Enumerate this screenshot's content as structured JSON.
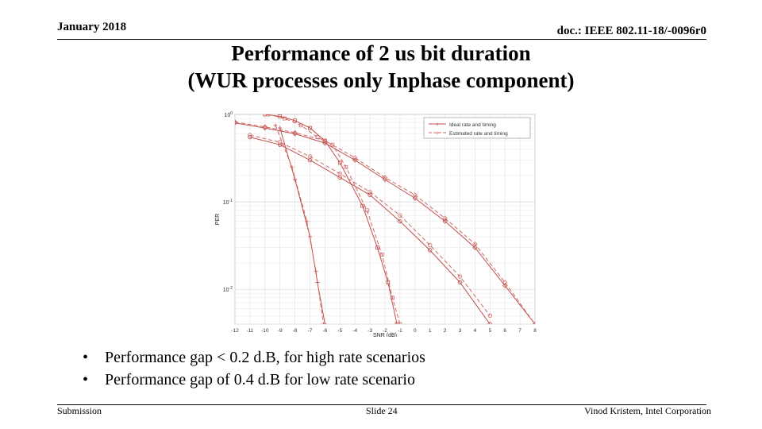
{
  "header": {
    "date": "January 2018",
    "doc": "doc.: IEEE 802.11-18/-0096r0"
  },
  "title": {
    "line1": "Performance of 2 us bit duration",
    "line2": "(WUR processes only Inphase component)"
  },
  "chart_data": {
    "type": "line",
    "title": "",
    "xlabel": "SNR (dB)",
    "ylabel": "PER",
    "xlim": [
      -12,
      8
    ],
    "ylim": [
      0.004,
      1
    ],
    "yscale": "log",
    "grid": true,
    "legend_position": "top-right",
    "x_ticks": [
      "-12",
      "-11",
      "-10",
      "-9",
      "-8",
      "-7",
      "-6",
      "-5",
      "-4",
      "-3",
      "-2",
      "-1",
      "0",
      "1",
      "2",
      "3",
      "4",
      "5",
      "6",
      "7",
      "8"
    ],
    "y_ticks": [
      {
        "base": "10",
        "exp": "0",
        "value": 1
      },
      {
        "base": "10",
        "exp": "-1",
        "value": 0.1
      },
      {
        "base": "10",
        "exp": "-2",
        "value": 0.01
      }
    ],
    "colors": {
      "ideal": "#c0504d",
      "estimated": "#d06a66"
    },
    "legend": [
      "Ideal rate and timing",
      "Estimated rate and timing"
    ],
    "series": [
      {
        "name": "Ideal rate and timing",
        "group": "plus",
        "dash": false,
        "marker": "plus",
        "x": [
          -9,
          -8,
          -7,
          -6.5,
          -6
        ],
        "y": [
          0.7,
          0.18,
          0.04,
          0.012,
          0.004
        ]
      },
      {
        "name": "Estimated rate and timing",
        "group": "plus",
        "dash": true,
        "marker": "plus",
        "x": [
          -9.3,
          -8.2,
          -7.2,
          -6.6,
          -6.1
        ],
        "y": [
          0.75,
          0.25,
          0.06,
          0.016,
          0.004
        ]
      },
      {
        "name": "Ideal rate and timing",
        "group": "square",
        "dash": false,
        "marker": "square",
        "x": [
          -10,
          -9,
          -8,
          -7,
          -6,
          -5,
          -3.5,
          -2.5,
          -1.8,
          -1.2
        ],
        "y": [
          1,
          0.95,
          0.85,
          0.7,
          0.5,
          0.28,
          0.09,
          0.03,
          0.012,
          0.004
        ]
      },
      {
        "name": "Estimated rate and timing",
        "group": "square",
        "dash": true,
        "marker": "square",
        "x": [
          -9.8,
          -8.7,
          -7.6,
          -6.5,
          -5.5,
          -4.6,
          -3.2,
          -2.2,
          -1.5,
          -1.0
        ],
        "y": [
          1,
          0.9,
          0.75,
          0.55,
          0.45,
          0.25,
          0.08,
          0.025,
          0.008,
          0.004
        ]
      },
      {
        "name": "Ideal rate and timing",
        "group": "diamond",
        "dash": false,
        "marker": "diamond",
        "x": [
          -12,
          -10,
          -8,
          -6,
          -4,
          -2,
          0,
          2,
          4,
          6,
          8
        ],
        "y": [
          0.8,
          0.7,
          0.6,
          0.47,
          0.3,
          0.18,
          0.11,
          0.06,
          0.03,
          0.011,
          0.004
        ]
      },
      {
        "name": "Estimated rate and timing",
        "group": "diamond",
        "dash": true,
        "marker": "diamond",
        "x": [
          -12,
          -10,
          -8,
          -6,
          -4,
          -2,
          0,
          2,
          4,
          6,
          8
        ],
        "y": [
          0.82,
          0.72,
          0.62,
          0.5,
          0.32,
          0.19,
          0.12,
          0.065,
          0.033,
          0.012,
          0.004
        ]
      },
      {
        "name": "Ideal rate and timing",
        "group": "circle",
        "dash": false,
        "marker": "circle",
        "x": [
          -11,
          -9,
          -7,
          -5,
          -3,
          -1,
          1,
          3,
          5
        ],
        "y": [
          0.55,
          0.45,
          0.3,
          0.19,
          0.12,
          0.06,
          0.028,
          0.012,
          0.004
        ]
      },
      {
        "name": "Estimated rate and timing",
        "group": "circle",
        "dash": true,
        "marker": "circle",
        "x": [
          -11,
          -9,
          -7,
          -5,
          -3,
          -1,
          1,
          3,
          5
        ],
        "y": [
          0.58,
          0.48,
          0.33,
          0.21,
          0.13,
          0.07,
          0.032,
          0.014,
          0.005
        ]
      }
    ]
  },
  "bullets": [
    "Performance gap < 0.2 d.B, for high rate scenarios",
    "Performance gap of 0.4 d.B for low rate scenario"
  ],
  "footer": {
    "left": "Submission",
    "center": "Slide 24",
    "right": "Vinod Kristem, Intel Corporation"
  }
}
